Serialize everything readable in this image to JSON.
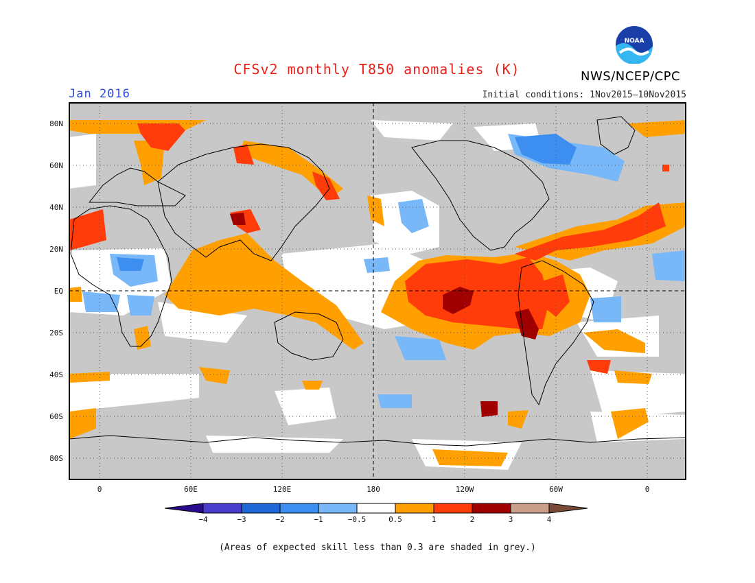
{
  "header": {
    "title": "CFSv2 monthly T850 anomalies (K)",
    "month": "Jan 2016",
    "initial_conditions": "Initial conditions: 1Nov2015–10Nov2015",
    "agency": "NWS/NCEP/CPC",
    "logo_text": "NOAA"
  },
  "map": {
    "projection": "cylindrical",
    "lat_labels": [
      "80N",
      "60N",
      "40N",
      "20N",
      "EQ",
      "20S",
      "40S",
      "60S",
      "80S"
    ],
    "lon_labels": [
      "0",
      "60E",
      "120E",
      "180",
      "120W",
      "60W",
      "0"
    ],
    "colors": {
      "skill_grey": "#c8c8c8",
      "land_outline": "#000000"
    }
  },
  "colorbar": {
    "tick_labels": [
      "−4",
      "−3",
      "−2",
      "−1",
      "−0.5",
      "0.5",
      "1",
      "2",
      "3",
      "4"
    ],
    "colors": [
      "#2a0a8c",
      "#4a3ccc",
      "#1e68d8",
      "#3c8ff0",
      "#78b8f8",
      "#ffffff",
      "#ffa000",
      "#ff3c0a",
      "#a00000",
      "#c8a08c",
      "#7a4a38"
    ]
  },
  "footnote": "(Areas of expected skill less than 0.3 are shaded in grey.)"
}
